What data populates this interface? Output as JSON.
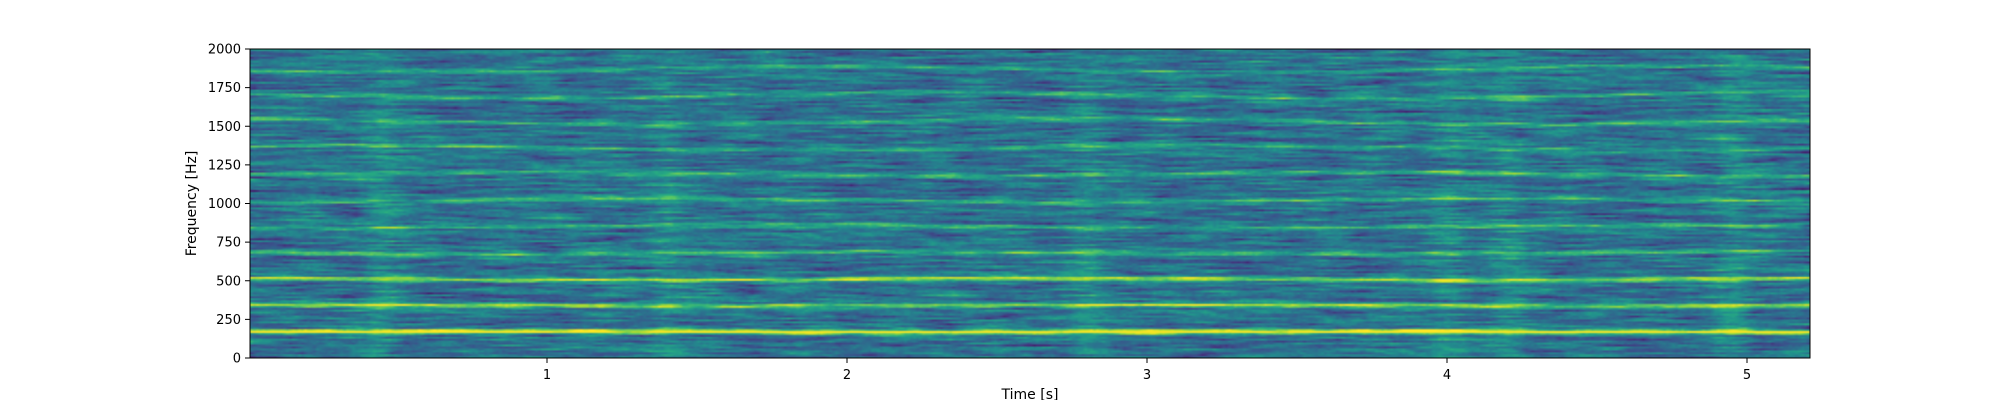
{
  "chart_data": {
    "type": "heatmap",
    "title": "",
    "xlabel": "Time [s]",
    "ylabel": "Frequency [Hz]",
    "xlim": [
      0.01,
      5.21
    ],
    "ylim": [
      0,
      2000
    ],
    "xticks": [
      1,
      2,
      3,
      4,
      5
    ],
    "xtick_labels": [
      "1",
      "2",
      "3",
      "4",
      "5"
    ],
    "yticks": [
      0,
      250,
      500,
      750,
      1000,
      1250,
      1500,
      1750,
      2000
    ],
    "ytick_labels": [
      "0",
      "250",
      "500",
      "750",
      "1000",
      "1250",
      "1500",
      "1750",
      "2000"
    ],
    "colormap": "viridis",
    "grid": false,
    "harmonic_bands_hz": [
      170,
      340,
      510,
      680,
      850,
      1020,
      1190,
      1360,
      1530,
      1700,
      1870
    ],
    "bright_time_regions_s": [
      0.45,
      1.4,
      2.8,
      4.0,
      4.2,
      4.95
    ]
  }
}
